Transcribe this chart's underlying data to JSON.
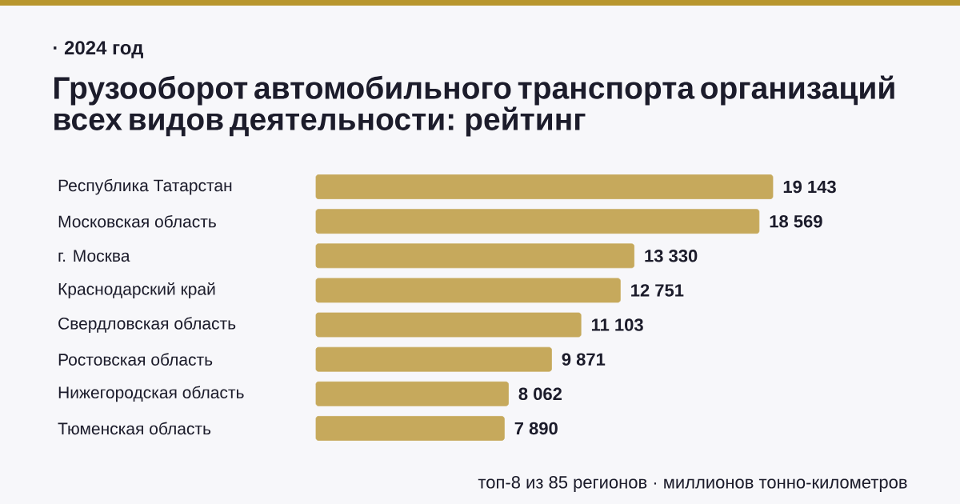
{
  "chart_data": {
    "type": "bar",
    "orientation": "horizontal",
    "subtitle": "· 2024 год",
    "title": "Грузооборот автомобильного транспорта организаций всех видов деятельности: рейтинг",
    "categories": [
      "Республика Татарстан",
      "Московская область",
      "г. Москва",
      "Краснодарский край",
      "Свердловская область",
      "Ростовская область",
      "Нижегородская область",
      "Тюменская область"
    ],
    "values": [
      19143,
      18569,
      13330,
      12751,
      11103,
      9871,
      8062,
      7890
    ],
    "value_labels": [
      "19 143",
      "18 569",
      "13 330",
      "12 751",
      "11 103",
      "9 871",
      "8 062",
      "7 890"
    ],
    "color": "#c6a95c",
    "tick_labels": "y",
    "annotations": [
      "топ-8 из 85 регионов · миллионов тонно-километров"
    ]
  }
}
